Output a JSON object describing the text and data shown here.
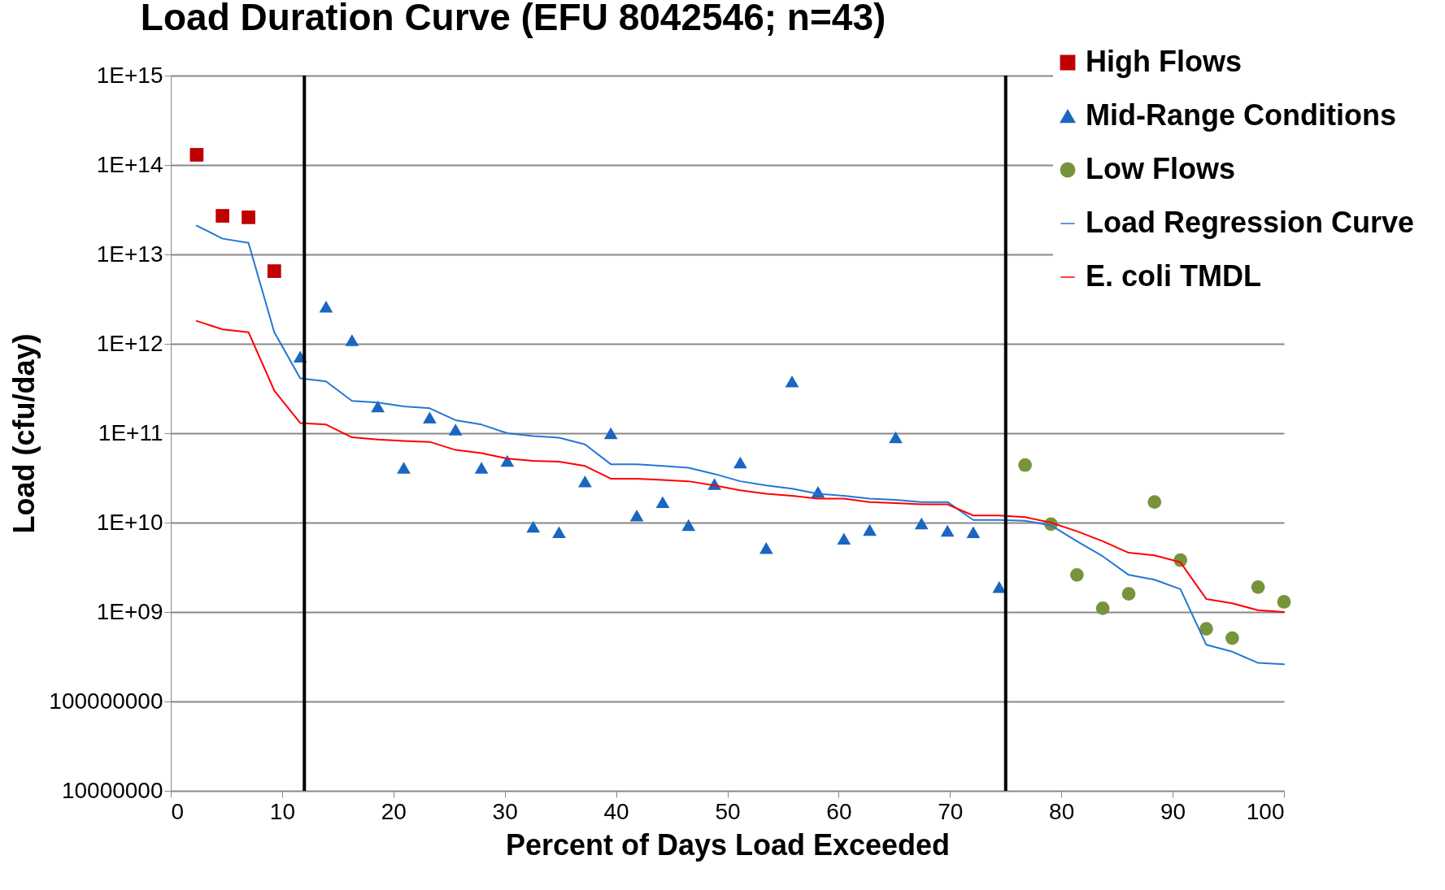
{
  "chart_data": {
    "type": "scatter",
    "title": "Load Duration Curve (EFU 8042546; n=43)",
    "xlabel": "Percent of Days Load Exceeded",
    "ylabel": "Load (cfu/day)",
    "x": [
      2.33,
      4.65,
      6.98,
      9.3,
      11.63,
      13.95,
      16.28,
      18.6,
      20.93,
      23.26,
      25.58,
      27.91,
      30.23,
      32.56,
      34.88,
      37.21,
      39.53,
      41.86,
      44.19,
      46.51,
      48.84,
      51.16,
      53.49,
      55.81,
      58.14,
      60.47,
      62.79,
      65.12,
      67.44,
      69.77,
      72.09,
      74.42,
      76.74,
      79.07,
      81.4,
      83.72,
      86.05,
      88.37,
      90.7,
      93.02,
      95.35,
      97.67,
      100
    ],
    "series": [
      {
        "name": "High Flows",
        "marker": "square",
        "color": "#c00000",
        "values": [
          130000000000000.0,
          27000000000000.0,
          26000000000000.0,
          6500000000000.0,
          null,
          null,
          null,
          null,
          null,
          null,
          null,
          null,
          null,
          null,
          null,
          null,
          null,
          null,
          null,
          null,
          null,
          null,
          null,
          null,
          null,
          null,
          null,
          null,
          null,
          null,
          null,
          null,
          null,
          null,
          null,
          null,
          null,
          null,
          null,
          null,
          null,
          null,
          null
        ]
      },
      {
        "name": "Mid-Range Conditions",
        "marker": "triangle",
        "color": "#1a66c0",
        "values": [
          null,
          null,
          null,
          null,
          720000000000.0,
          2600000000000.0,
          1100000000000.0,
          200000000000.0,
          41000000000.0,
          150000000000.0,
          110000000000.0,
          41000000000.0,
          49000000000.0,
          9000000000.0,
          7800000000.0,
          29000000000.0,
          100000000000.0,
          12000000000.0,
          17000000000.0,
          9400000000.0,
          27000000000.0,
          47000000000.0,
          5200000000.0,
          380000000000.0,
          22000000000.0,
          6600000000.0,
          8300000000.0,
          90000000000.0,
          9800000000.0,
          8100000000.0,
          7800000000.0,
          1900000000.0,
          null,
          null,
          null,
          null,
          null,
          null,
          null,
          null,
          null,
          null,
          null
        ]
      },
      {
        "name": "Low Flows",
        "marker": "circle",
        "color": "#77933c",
        "values": [
          null,
          null,
          null,
          null,
          null,
          null,
          null,
          null,
          null,
          null,
          null,
          null,
          null,
          null,
          null,
          null,
          null,
          null,
          null,
          null,
          null,
          null,
          null,
          null,
          null,
          null,
          null,
          null,
          null,
          null,
          null,
          null,
          44000000000.0,
          9600000000.0,
          2600000000.0,
          1100000000.0,
          1600000000.0,
          17000000000.0,
          3800000000.0,
          650000000.0,
          510000000.0,
          1900000000.0,
          1300000000.0
        ]
      },
      {
        "name": "Load Regression Curve",
        "type": "line",
        "marker": "none",
        "color": "#2377d4",
        "values": [
          21000000000000.0,
          15000000000000.0,
          13500000000000.0,
          1350000000000.0,
          410000000000.0,
          380000000000.0,
          230000000000.0,
          220000000000.0,
          200000000000.0,
          190000000000.0,
          140000000000.0,
          125000000000.0,
          100000000000.0,
          93000000000.0,
          89000000000.0,
          75000000000.0,
          45000000000.0,
          45000000000.0,
          43000000000.0,
          41000000000.0,
          35000000000.0,
          29000000000.0,
          26000000000.0,
          24000000000.0,
          21000000000.0,
          20000000000.0,
          18500000000.0,
          18000000000.0,
          17000000000.0,
          17000000000.0,
          10700000000.0,
          10700000000.0,
          10500000000.0,
          9300000000.0,
          6200000000.0,
          4200000000.0,
          2600000000.0,
          2300000000.0,
          1800000000.0,
          430000000.0,
          360000000.0,
          270000000.0,
          260000000.0
        ]
      },
      {
        "name": "E. coli TMDL",
        "type": "line",
        "marker": "none",
        "color": "#ff0000",
        "values": [
          1800000000000.0,
          1450000000000.0,
          1350000000000.0,
          300000000000.0,
          130000000000.0,
          125000000000.0,
          90000000000.0,
          85000000000.0,
          82000000000.0,
          80000000000.0,
          65000000000.0,
          60000000000.0,
          52000000000.0,
          49000000000.0,
          48000000000.0,
          43000000000.0,
          31000000000.0,
          31000000000.0,
          30000000000.0,
          29000000000.0,
          26000000000.0,
          23000000000.0,
          21000000000.0,
          20000000000.0,
          18500000000.0,
          18500000000.0,
          17000000000.0,
          16500000000.0,
          16000000000.0,
          16000000000.0,
          12000000000.0,
          12000000000.0,
          11500000000.0,
          10000000000.0,
          8000000000.0,
          6200000000.0,
          4600000000.0,
          4300000000.0,
          3600000000.0,
          1400000000.0,
          1250000000.0,
          1050000000.0,
          1000000000.0
        ]
      }
    ],
    "xlim": [
      0,
      100
    ],
    "xticks": [
      0,
      10,
      20,
      30,
      40,
      50,
      60,
      70,
      80,
      90,
      100
    ],
    "ylim": [
      10000000,
      1000000000000000.0
    ],
    "yticks": [
      10000000,
      100000000,
      {
        "value": 1000000000.0,
        "label": "1E+09"
      },
      {
        "value": 10000000000.0,
        "label": "1E+10"
      },
      {
        "value": 100000000000.0,
        "label": "1E+11"
      },
      {
        "value": 1000000000000.0,
        "label": "1E+12"
      },
      {
        "value": 10000000000000.0,
        "label": "1E+13"
      },
      {
        "value": 100000000000000.0,
        "label": "1E+14"
      },
      {
        "value": 1000000000000000.0,
        "label": "1E+15"
      }
    ],
    "log": true,
    "grid": "y",
    "legend": "top right",
    "ref_lines": [
      {
        "axis": "x",
        "value": 12,
        "color": "#000000"
      },
      {
        "axis": "x",
        "value": 75,
        "color": "#000000"
      }
    ]
  }
}
